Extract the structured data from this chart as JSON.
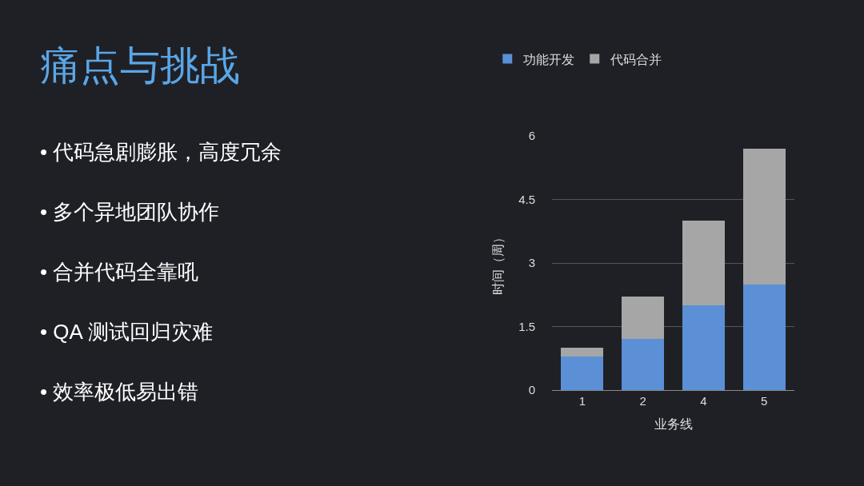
{
  "chart_data": {
    "type": "bar",
    "title": "痛点与挑战",
    "xlabel": "业务线",
    "ylabel": "时间（周）",
    "categories": [
      "1",
      "2",
      "4",
      "5"
    ],
    "stacked": true,
    "series": [
      {
        "name": "功能开发",
        "color": "#5b8fd6",
        "values": [
          0.8,
          1.2,
          2.0,
          2.5
        ]
      },
      {
        "name": "代码合并",
        "color": "#a6a6a6",
        "values": [
          0.2,
          1.0,
          2.0,
          3.2
        ]
      }
    ],
    "ylim": [
      0,
      6
    ],
    "yticks": [
      0,
      1.5,
      3,
      4.5,
      6
    ],
    "grid": "y",
    "legend": "top",
    "annotations": [
      "• 代码急剧膨胀，高度冗余",
      "• 多个异地团队协作",
      "• 合并代码全靠吼",
      "• QA 测试回归灾难",
      "• 效率极低易出错"
    ]
  }
}
